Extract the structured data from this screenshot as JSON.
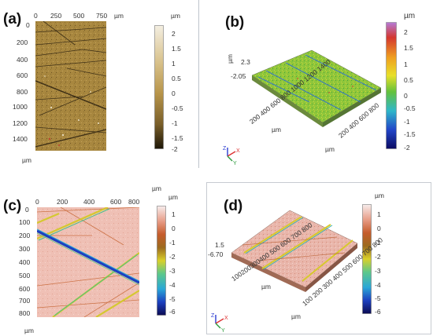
{
  "panels": {
    "a": {
      "label": "(a)",
      "unit_top": "µm",
      "unit_left": "µm",
      "unit_cbar": "µm",
      "x_ticks": [
        "0",
        "250",
        "500",
        "750"
      ],
      "y_ticks": [
        "0",
        "200",
        "400",
        "600",
        "800",
        "1000",
        "1200",
        "1400"
      ],
      "cbar_ticks": [
        "2",
        "1.5",
        "1",
        "0.5",
        "0",
        "-0.5",
        "-1",
        "-1.5",
        "-2"
      ]
    },
    "b": {
      "label": "(b)",
      "unit_cbar": "µm",
      "z_max": "2.3",
      "z_min": "-2.05",
      "z_unit": "µm",
      "x_axis_ticks": "200 400 600 800 1000 1200 1400",
      "x_axis_unit": "µm",
      "y_axis_ticks": "200 400 600 800",
      "y_axis_unit": "µm",
      "cbar_ticks": [
        "2",
        "1.5",
        "1",
        "0.5",
        "0",
        "-0.5",
        "-1",
        "-1.5",
        "-2"
      ]
    },
    "c": {
      "label": "(c)",
      "unit_top": "µm",
      "unit_left": "µm",
      "unit_cbar": "µm",
      "x_ticks": [
        "0",
        "200",
        "400",
        "600",
        "800"
      ],
      "y_ticks": [
        "0",
        "100",
        "200",
        "300",
        "400",
        "500",
        "600",
        "700",
        "800"
      ],
      "cbar_ticks": [
        "1",
        "0",
        "-1",
        "-2",
        "-3",
        "-4",
        "-5",
        "-6"
      ]
    },
    "d": {
      "label": "(d)",
      "unit_cbar": "µm",
      "z_max": "1.5",
      "z_min": "-6.70",
      "x_axis_ticks": "100200300400 500 600 700 800",
      "x_axis_unit": "µm",
      "y_axis_ticks": "100 200 300 400 500 600 700 800",
      "y_axis_unit": "µm",
      "cbar_ticks": [
        "1",
        "0",
        "-1",
        "-2",
        "-3",
        "-4",
        "-5",
        "-6"
      ]
    }
  },
  "axis_gizmo": {
    "x": "X",
    "y": "Y",
    "z": "Z"
  },
  "colors": {
    "panel_a_surface": "#a8873f",
    "panel_b_surface": "#8fc63a",
    "panel_c_surface": "#efc0b5",
    "panel_d_surface": "#e9b6ab",
    "cbar_a": [
      "#f4efe2",
      "#d8c18a",
      "#b8954a",
      "#7a5f2a",
      "#1d1608"
    ],
    "cbar_b": [
      "#b47bd8",
      "#d4372f",
      "#efa020",
      "#e8e02a",
      "#63c13c",
      "#2fb7c9",
      "#2245c8",
      "#0b0b62"
    ],
    "cbar_cd": [
      "#f7ecec",
      "#e79c86",
      "#c55c2c",
      "#9c6a1e",
      "#d9d02a",
      "#5cc88a",
      "#2aa7d7",
      "#1c3fbf",
      "#0b0b52"
    ]
  }
}
